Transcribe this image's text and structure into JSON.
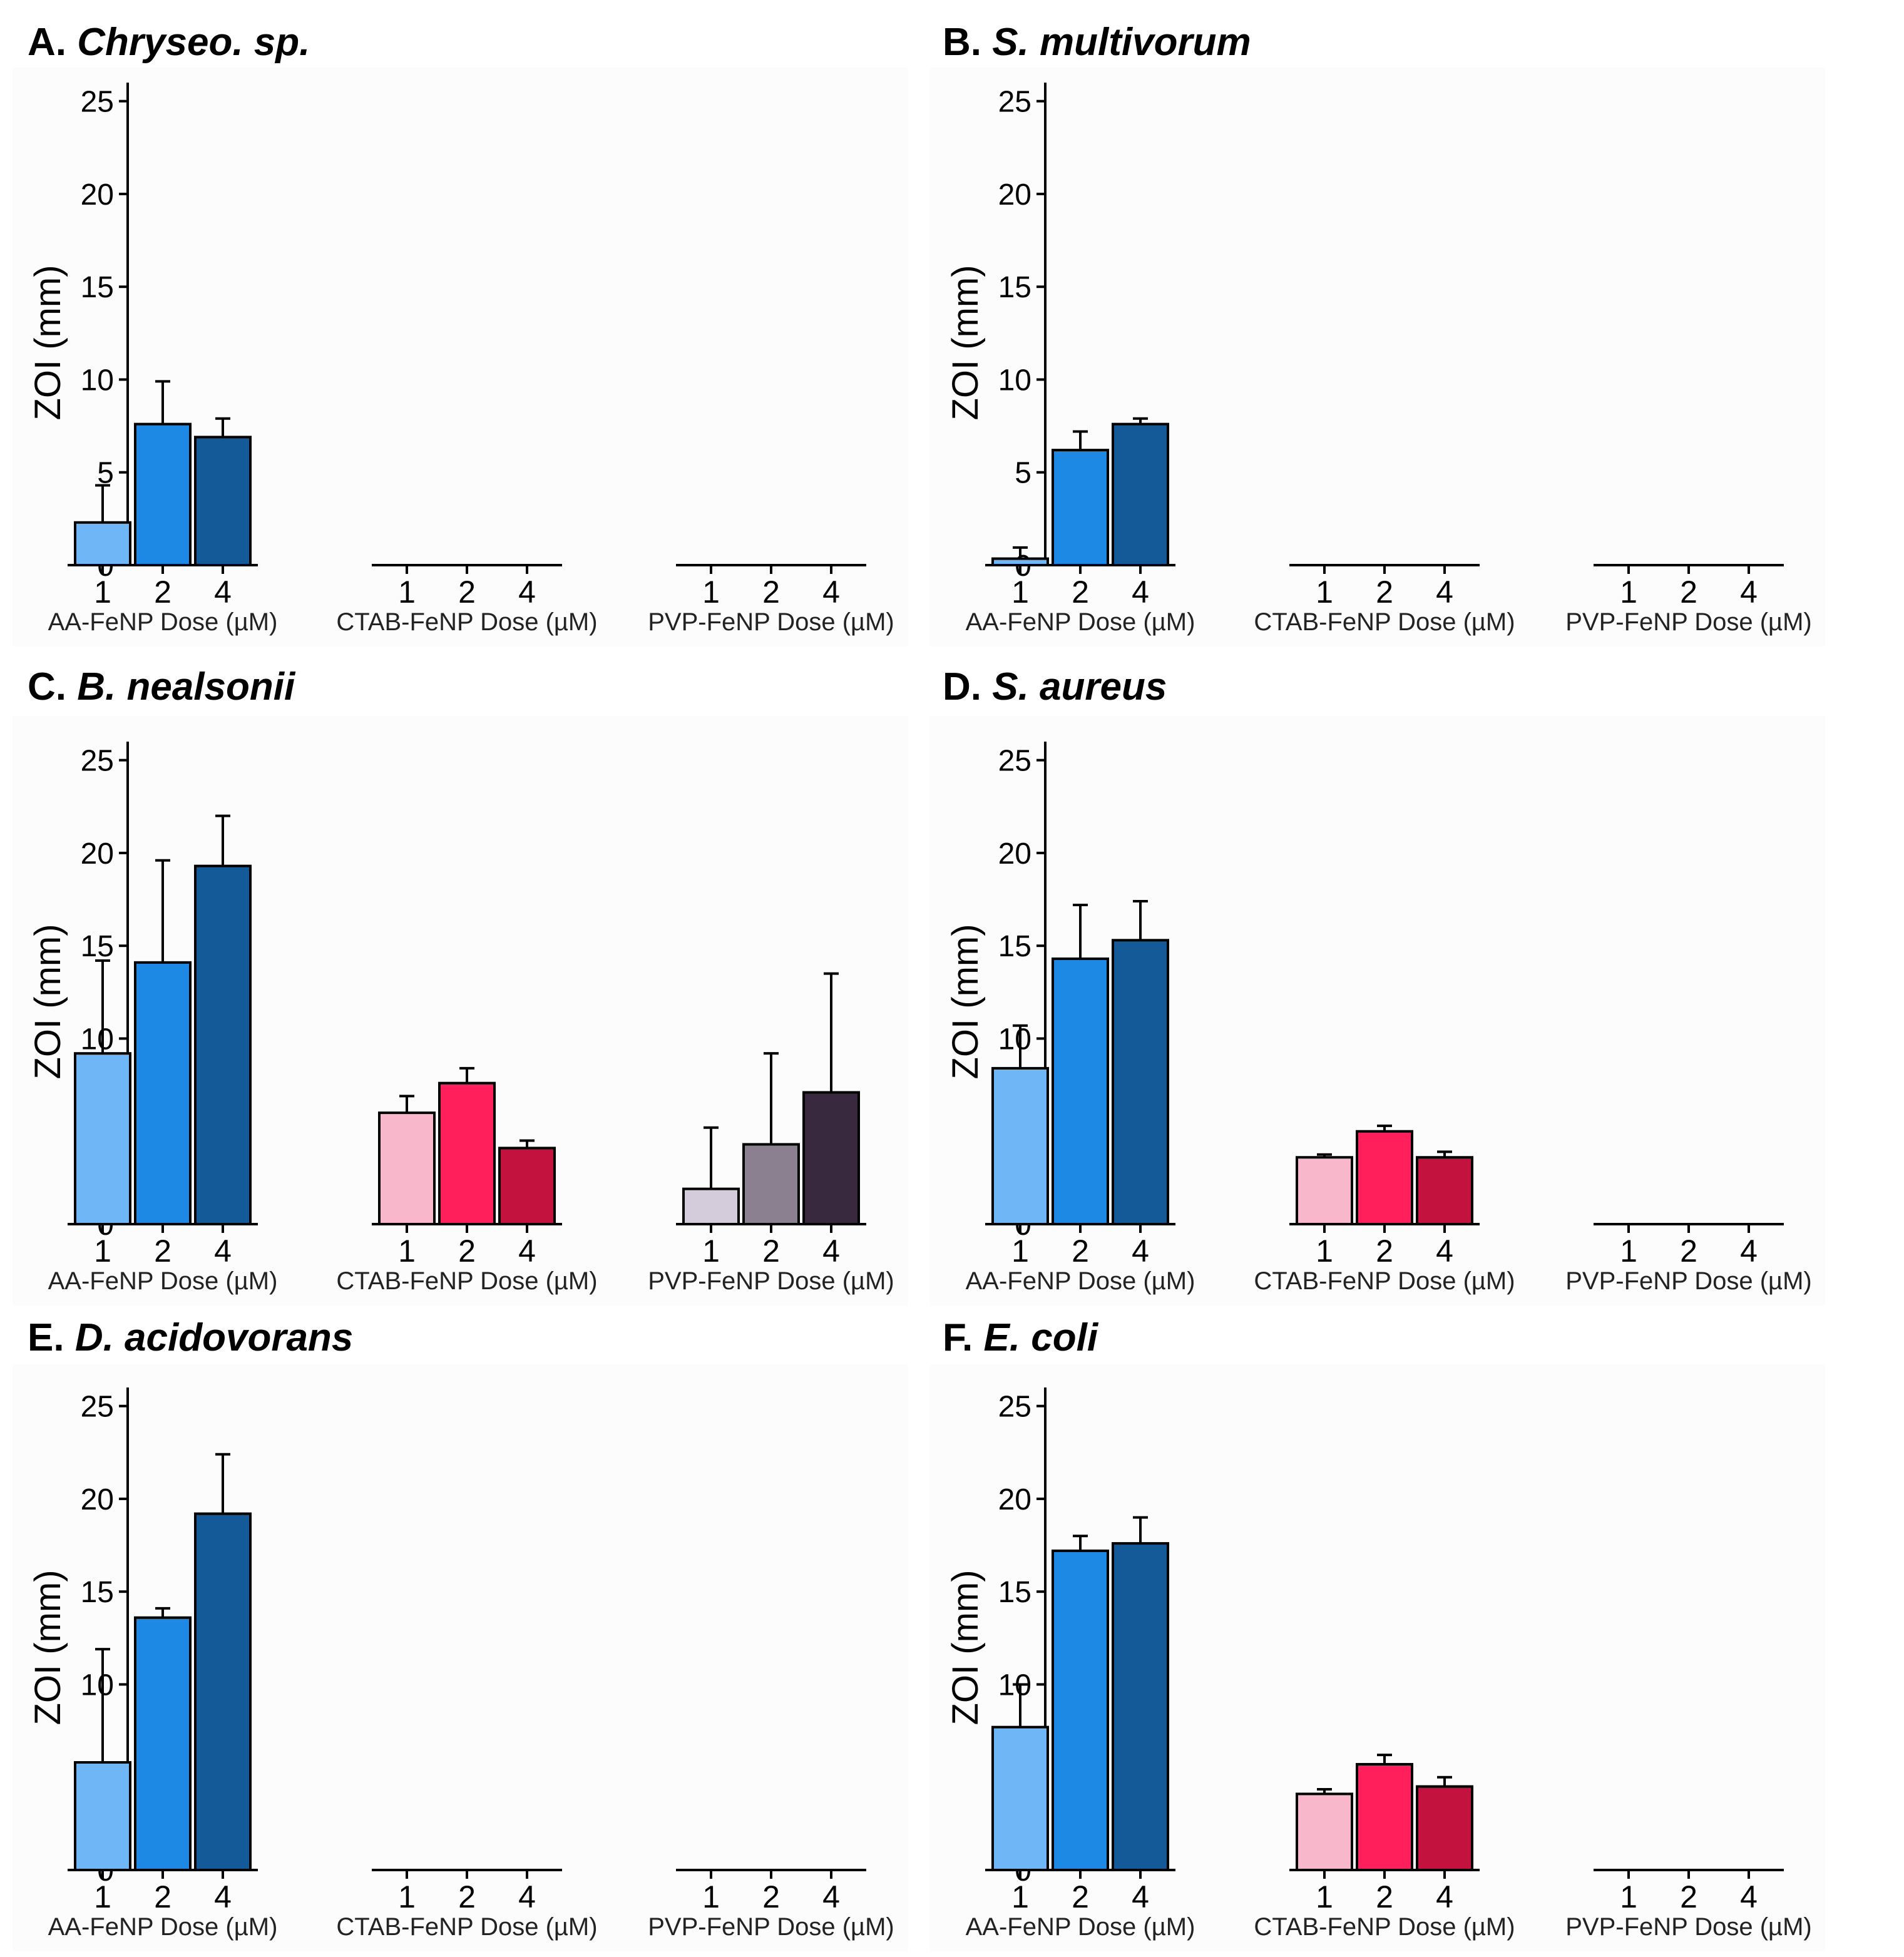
{
  "figure": {
    "y_axis_title": "ZOI (mm)"
  },
  "colors": {
    "AA-FeNP": [
      "#6EB6F5",
      "#1E88E5",
      "#145A98"
    ],
    "CTAB-FeNP": [
      "#F9B7CB",
      "#FF1F5A",
      "#C2123D"
    ],
    "PVP-FeNP": [
      "#D4CCDA",
      "#8A8090",
      "#39293E"
    ],
    "bar_edge": "#000000",
    "panel_bg": "#FCFCFC"
  },
  "chart_data": [
    {
      "type": "bar",
      "panel": "A.",
      "organism": "Chryseo. sp.",
      "ylabel": "ZOI (mm)",
      "ylim": [
        0,
        26
      ],
      "yticks": [
        0,
        5,
        10,
        15,
        20,
        25
      ],
      "categories": [
        "1",
        "2",
        "4"
      ],
      "groups": [
        {
          "name": "AA-FeNP",
          "xlabel": "AA-FeNP Dose (µM)",
          "values": [
            2.3,
            7.6,
            6.9
          ],
          "errors": [
            2.0,
            2.3,
            1.0
          ]
        },
        {
          "name": "CTAB-FeNP",
          "xlabel": "CTAB-FeNP Dose (µM)",
          "values": [
            0,
            0,
            0
          ],
          "errors": [
            0,
            0,
            0
          ]
        },
        {
          "name": "PVP-FeNP",
          "xlabel": "PVP-FeNP Dose (µM)",
          "values": [
            0,
            0,
            0
          ],
          "errors": [
            0,
            0,
            0
          ]
        }
      ]
    },
    {
      "type": "bar",
      "panel": "B.",
      "organism": "S. multivorum",
      "ylabel": "ZOI (mm)",
      "ylim": [
        0,
        26
      ],
      "yticks": [
        0,
        5,
        10,
        15,
        20,
        25
      ],
      "categories": [
        "1",
        "2",
        "4"
      ],
      "groups": [
        {
          "name": "AA-FeNP",
          "xlabel": "AA-FeNP Dose (µM)",
          "values": [
            0.35,
            6.2,
            7.6
          ],
          "errors": [
            0.6,
            1.0,
            0.3
          ]
        },
        {
          "name": "CTAB-FeNP",
          "xlabel": "CTAB-FeNP Dose (µM)",
          "values": [
            0,
            0,
            0
          ],
          "errors": [
            0,
            0,
            0
          ]
        },
        {
          "name": "PVP-FeNP",
          "xlabel": "PVP-FeNP Dose (µM)",
          "values": [
            0,
            0,
            0
          ],
          "errors": [
            0,
            0,
            0
          ]
        }
      ]
    },
    {
      "type": "bar",
      "panel": "C.",
      "organism": "B. nealsonii",
      "ylabel": "ZOI (mm)",
      "ylim": [
        0,
        26
      ],
      "yticks": [
        0,
        5,
        10,
        15,
        20,
        25
      ],
      "categories": [
        "1",
        "2",
        "4"
      ],
      "groups": [
        {
          "name": "AA-FeNP",
          "xlabel": "AA-FeNP Dose (µM)",
          "values": [
            9.2,
            14.1,
            19.3
          ],
          "errors": [
            5.0,
            5.5,
            2.7
          ]
        },
        {
          "name": "CTAB-FeNP",
          "xlabel": "CTAB-FeNP Dose (µM)",
          "values": [
            6.0,
            7.6,
            4.1
          ],
          "errors": [
            0.9,
            0.8,
            0.4
          ]
        },
        {
          "name": "PVP-FeNP",
          "xlabel": "PVP-FeNP Dose (µM)",
          "values": [
            1.9,
            4.3,
            7.1
          ],
          "errors": [
            3.3,
            4.9,
            6.4
          ]
        }
      ]
    },
    {
      "type": "bar",
      "panel": "D.",
      "organism": "S. aureus",
      "ylabel": "ZOI (mm)",
      "ylim": [
        0,
        26
      ],
      "yticks": [
        0,
        5,
        10,
        15,
        20,
        25
      ],
      "categories": [
        "1",
        "2",
        "4"
      ],
      "groups": [
        {
          "name": "AA-FeNP",
          "xlabel": "AA-FeNP Dose (µM)",
          "values": [
            8.4,
            14.3,
            15.3
          ],
          "errors": [
            2.3,
            2.9,
            2.1
          ]
        },
        {
          "name": "CTAB-FeNP",
          "xlabel": "CTAB-FeNP Dose (µM)",
          "values": [
            3.6,
            5.0,
            3.6
          ],
          "errors": [
            0.15,
            0.3,
            0.3
          ]
        },
        {
          "name": "PVP-FeNP",
          "xlabel": "PVP-FeNP Dose (µM)",
          "values": [
            0,
            0,
            0
          ],
          "errors": [
            0,
            0,
            0
          ]
        }
      ]
    },
    {
      "type": "bar",
      "panel": "E.",
      "organism": "D. acidovorans",
      "ylabel": "ZOI (mm)",
      "ylim": [
        0,
        26
      ],
      "yticks": [
        0,
        5,
        10,
        15,
        20,
        25
      ],
      "categories": [
        "1",
        "2",
        "4"
      ],
      "groups": [
        {
          "name": "AA-FeNP",
          "xlabel": "AA-FeNP Dose (µM)",
          "values": [
            5.8,
            13.6,
            19.2
          ],
          "errors": [
            6.1,
            0.5,
            3.2
          ]
        },
        {
          "name": "CTAB-FeNP",
          "xlabel": "CTAB-FeNP Dose (µM)",
          "values": [
            0,
            0,
            0
          ],
          "errors": [
            0,
            0,
            0
          ]
        },
        {
          "name": "PVP-FeNP",
          "xlabel": "PVP-FeNP Dose (µM)",
          "values": [
            0,
            0,
            0
          ],
          "errors": [
            0,
            0,
            0
          ]
        }
      ]
    },
    {
      "type": "bar",
      "panel": "F.",
      "organism": "E. coli",
      "ylabel": "ZOI (mm)",
      "ylim": [
        0,
        26
      ],
      "yticks": [
        0,
        5,
        10,
        15,
        20,
        25
      ],
      "categories": [
        "1",
        "2",
        "4"
      ],
      "groups": [
        {
          "name": "AA-FeNP",
          "xlabel": "AA-FeNP Dose (µM)",
          "values": [
            7.7,
            17.2,
            17.6
          ],
          "errors": [
            2.3,
            0.8,
            1.4
          ]
        },
        {
          "name": "CTAB-FeNP",
          "xlabel": "CTAB-FeNP Dose (µM)",
          "values": [
            4.1,
            5.7,
            4.5
          ],
          "errors": [
            0.25,
            0.5,
            0.5
          ]
        },
        {
          "name": "PVP-FeNP",
          "xlabel": "PVP-FeNP Dose (µM)",
          "values": [
            0,
            0,
            0
          ],
          "errors": [
            0,
            0,
            0
          ]
        }
      ]
    }
  ]
}
